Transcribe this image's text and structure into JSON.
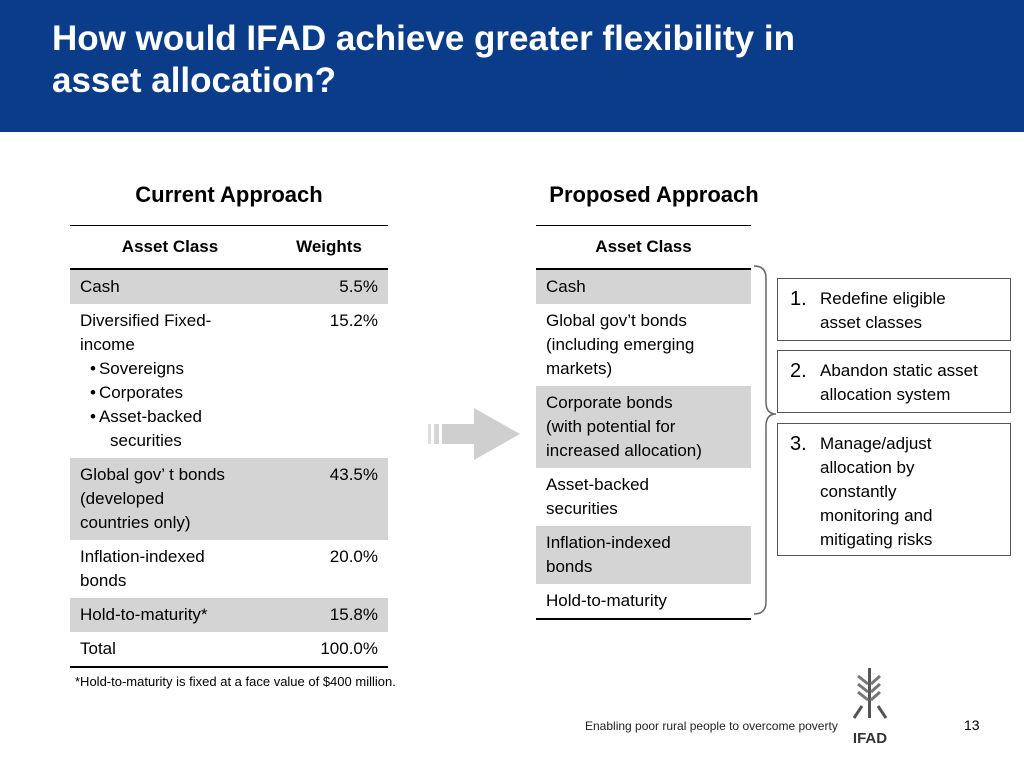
{
  "header": {
    "title": "How would IFAD achieve greater flexibility in\nasset allocation?"
  },
  "current": {
    "heading": "Current Approach",
    "columns": [
      "Asset Class",
      "Weights"
    ],
    "rows": [
      {
        "label": "Cash",
        "weight": "5.5%"
      },
      {
        "label": "Diversified Fixed-\nincome",
        "bullets": [
          "Sovereigns",
          "Corporates",
          "Asset-backed\nsecurities"
        ],
        "weight": "15.2%"
      },
      {
        "label": "Global gov’ t bonds\n(developed\ncountries only)",
        "weight": "43.5%"
      },
      {
        "label": "Inflation-indexed\nbonds",
        "weight": "20.0%"
      },
      {
        "label": "Hold-to-maturity*",
        "weight": "15.8%"
      },
      {
        "label": "Total",
        "weight": "100.0%"
      }
    ]
  },
  "proposed": {
    "heading": "Proposed Approach",
    "columns": [
      "Asset Class"
    ],
    "rows": [
      "Cash",
      "Global gov’t bonds\n(including emerging\nmarkets)",
      "Corporate bonds\n(with potential for\nincreased allocation)",
      "Asset-backed\nsecurities",
      "Inflation-indexed\nbonds",
      "Hold-to-maturity"
    ]
  },
  "steps": [
    {
      "number": "1.",
      "text": "Redefine eligible\nasset classes"
    },
    {
      "number": "2.",
      "text": "Abandon static asset\nallocation system"
    },
    {
      "number": "3.",
      "text": "Manage/adjust\nallocation by\nconstantly\nmonitoring and\nmitigating risks"
    }
  ],
  "footnote": "*Hold-to-maturity is fixed at a face value of $400 million.",
  "footer": {
    "tagline": "Enabling poor rural people to overcome poverty",
    "logo": "IFAD",
    "page_number": "13"
  }
}
